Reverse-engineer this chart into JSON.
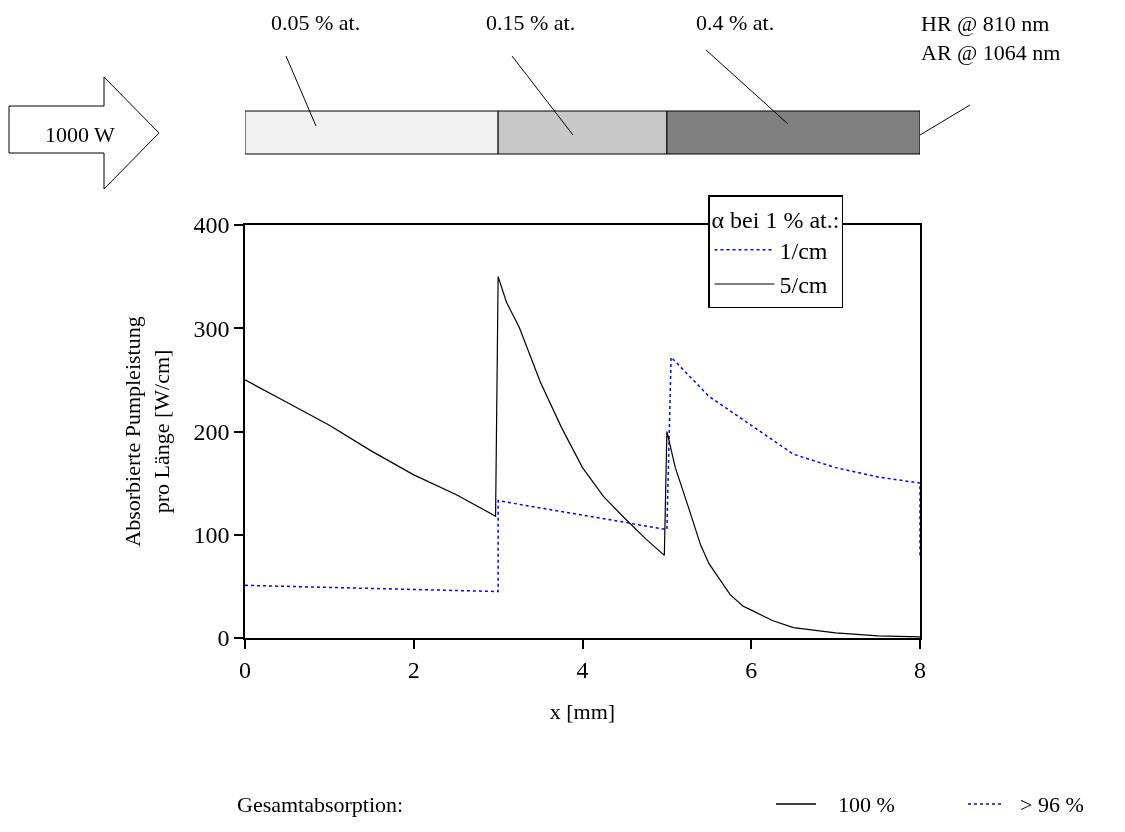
{
  "chart_data": {
    "type": "line",
    "xlabel": "x [mm]",
    "ylabel": "Absorbierte Pumpleistung\npro Länge [W/cm]",
    "legend_title": "α bei 1 % at.:",
    "xlim": [
      0,
      8
    ],
    "xticks": [
      0,
      2,
      4,
      6,
      8
    ],
    "ylim": [
      0,
      400
    ],
    "yticks": [
      0,
      100,
      200,
      300,
      400
    ],
    "legend": "top right",
    "marker": "none",
    "series": [
      {
        "name": "1/cm",
        "color": "#0000ff",
        "line_style": "dotted",
        "x": [
          0,
          1,
          2,
          3,
          3,
          4,
          5,
          5.05,
          5.5,
          6,
          6.5,
          7,
          7.5,
          8,
          8
        ],
        "values": [
          51,
          49,
          47,
          45,
          133,
          119,
          105,
          272,
          234,
          206,
          178,
          165,
          156,
          150,
          79
        ]
      },
      {
        "name": "5/cm",
        "color": "#000000",
        "line_style": "solid",
        "x": [
          0,
          0.5,
          1,
          1.5,
          2,
          2.5,
          2.97,
          3,
          3.1,
          3.25,
          3.5,
          3.75,
          4,
          4.25,
          4.5,
          4.75,
          4.97,
          5,
          5.1,
          5.25,
          5.4,
          5.5,
          5.6,
          5.75,
          5.9,
          6,
          6.25,
          6.5,
          7,
          7.5,
          8
        ],
        "values": [
          250,
          228,
          206,
          181,
          158,
          139,
          118,
          350,
          325,
          301,
          248,
          204,
          165,
          137,
          116,
          96,
          80,
          200,
          165,
          128,
          90,
          72,
          60,
          42,
          31,
          27,
          17,
          10,
          5,
          2,
          1
        ]
      }
    ],
    "annotations": [
      "1000 W",
      "0.05 % at.",
      "0.15 % at.",
      "0.4 % at.",
      "HR @ 810 nm\nAR @ 1064 nm",
      "Gesamtabsorption:",
      "100 %",
      "> 96 %"
    ]
  }
}
